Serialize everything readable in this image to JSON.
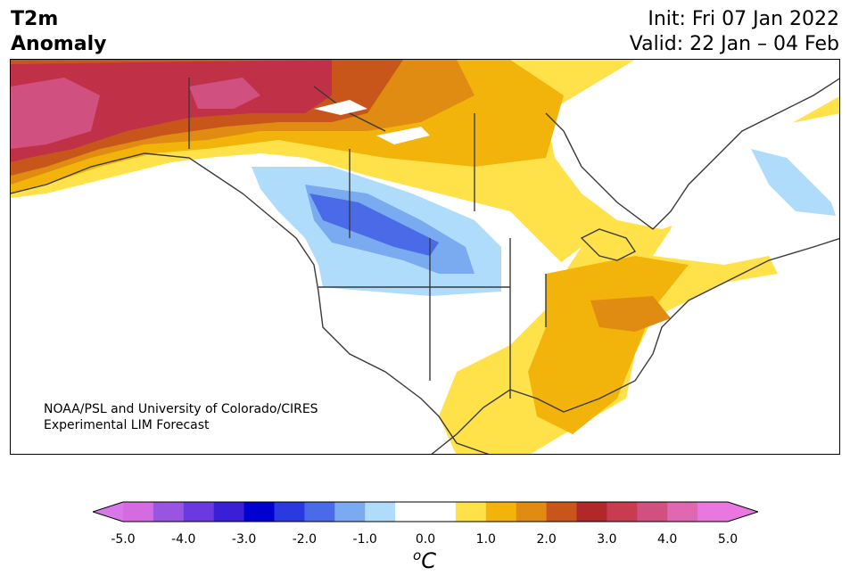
{
  "title": {
    "left_line1": "T2m",
    "left_line2": "Anomaly",
    "init": "Init: Fri 07 Jan 2022",
    "valid": "Valid: 22 Jan – 04 Feb"
  },
  "credit": {
    "line1": "NOAA/PSL and University of Colorado/CIRES",
    "line2": "Experimental LIM Forecast"
  },
  "colorbar": {
    "unit_base": "C",
    "unit_sup": "o",
    "ticks": [
      "-5.0",
      "-4.0",
      "-3.0",
      "-2.0",
      "-1.0",
      "0.0",
      "1.0",
      "2.0",
      "3.0",
      "4.0",
      "5.0"
    ],
    "colors": [
      "#d46be0",
      "#9a55e0",
      "#6a3ae0",
      "#3a1ed8",
      "#0000d0",
      "#2a3ae0",
      "#4a6ae8",
      "#7aaaf0",
      "#b0dcfc",
      "#ffffff",
      "#ffffff",
      "#ffe24a",
      "#f2b40a",
      "#e08c12",
      "#c8561a",
      "#b02828",
      "#c83c50",
      "#d05080",
      "#e068b0",
      "#e878e0"
    ],
    "under_color": "#d878e8",
    "over_color": "#e878e0"
  },
  "map": {
    "region": "North America",
    "variable": "2 m temperature anomaly"
  }
}
